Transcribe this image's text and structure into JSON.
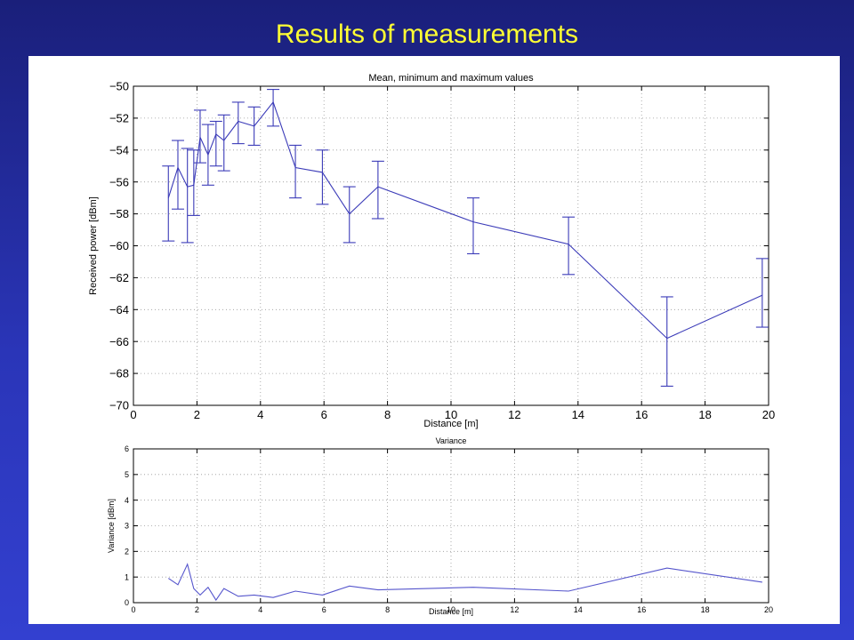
{
  "slide": {
    "title": "Results of measurements"
  },
  "chart_data": [
    {
      "type": "line",
      "title": "Mean, minimum and maximum values",
      "xlabel": "Distance [m]",
      "ylabel": "Received power [dBm]",
      "xlim": [
        0,
        20
      ],
      "ylim": [
        -70,
        -50
      ],
      "xticks": [
        0,
        2,
        4,
        6,
        8,
        10,
        12,
        14,
        16,
        18,
        20
      ],
      "yticks": [
        -70,
        -68,
        -66,
        -64,
        -62,
        -60,
        -58,
        -56,
        -54,
        -52,
        -50
      ],
      "grid": true,
      "color": "#3b3bb8",
      "series": [
        {
          "x": [
            1.1,
            1.4,
            1.7,
            1.9,
            2.1,
            2.35,
            2.6,
            2.85,
            3.3,
            3.8,
            4.4,
            5.1,
            5.95,
            6.8,
            7.7,
            10.7,
            13.7,
            16.8,
            19.8
          ],
          "y": [
            -57.0,
            -55.1,
            -56.3,
            -56.2,
            -53.2,
            -54.3,
            -53.0,
            -53.4,
            -52.2,
            -52.5,
            -51.0,
            -55.1,
            -55.4,
            -58.0,
            -56.3,
            -58.5,
            -59.9,
            -65.8,
            -63.1
          ],
          "min": [
            -59.7,
            -57.7,
            -59.8,
            -58.1,
            -54.8,
            -56.2,
            -55.0,
            -55.3,
            -53.6,
            -53.7,
            -52.5,
            -57.0,
            -57.4,
            -59.8,
            -58.3,
            -60.5,
            -61.8,
            -68.8,
            -65.1
          ],
          "max": [
            -55.0,
            -53.4,
            -53.9,
            -54.0,
            -51.5,
            -52.4,
            -52.2,
            -51.8,
            -51.0,
            -51.3,
            -50.2,
            -53.7,
            -54.0,
            -56.3,
            -54.7,
            -57.0,
            -58.2,
            -63.2,
            -60.8
          ]
        }
      ]
    },
    {
      "type": "line",
      "title": "Variance",
      "xlabel": "Distance [m]",
      "ylabel": "Variance [dBm]",
      "xlim": [
        0,
        20
      ],
      "ylim": [
        0,
        6
      ],
      "xticks": [
        0,
        2,
        4,
        6,
        8,
        10,
        12,
        14,
        16,
        18,
        20
      ],
      "yticks": [
        0,
        1,
        2,
        3,
        4,
        5,
        6
      ],
      "grid": true,
      "color": "#5555cc",
      "series": [
        {
          "x": [
            1.1,
            1.4,
            1.7,
            1.9,
            2.1,
            2.35,
            2.6,
            2.85,
            3.3,
            3.8,
            4.4,
            5.1,
            5.95,
            6.8,
            7.7,
            10.7,
            13.7,
            16.8,
            19.8
          ],
          "y": [
            0.95,
            0.7,
            1.5,
            0.55,
            0.3,
            0.6,
            0.1,
            0.55,
            0.25,
            0.3,
            0.2,
            0.45,
            0.3,
            0.65,
            0.5,
            0.6,
            0.45,
            1.35,
            0.8
          ]
        }
      ]
    }
  ]
}
